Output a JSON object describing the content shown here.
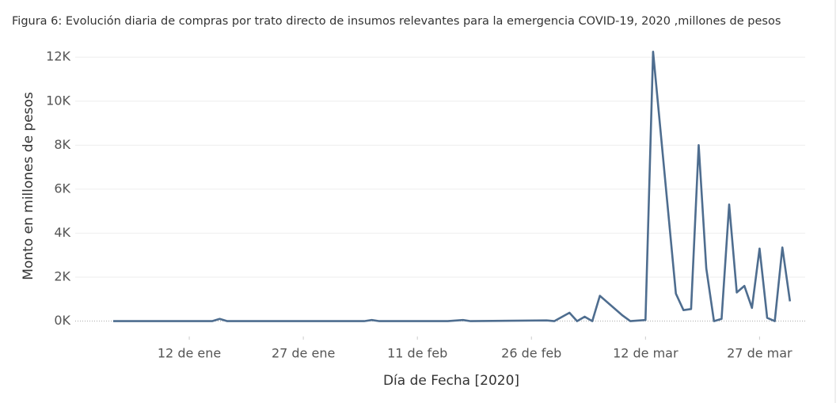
{
  "chart_data": {
    "type": "line",
    "title": "Figura 6: Evolución diaria de compras  por trato directo de insumos relevantes para la emergencia COVID-19, 2020 ,millones de pesos",
    "x_label": "Día de Fecha [2020]",
    "y_label": "Monto en millones de pesos",
    "x": [
      "2020-01-02",
      "2020-01-15",
      "2020-01-16",
      "2020-01-17",
      "2020-02-04",
      "2020-02-05",
      "2020-02-06",
      "2020-02-15",
      "2020-02-17",
      "2020-02-18",
      "2020-02-28",
      "2020-02-29",
      "2020-03-02",
      "2020-03-03",
      "2020-03-04",
      "2020-03-05",
      "2020-03-06",
      "2020-03-09",
      "2020-03-10",
      "2020-03-12",
      "2020-03-13",
      "2020-03-16",
      "2020-03-17",
      "2020-03-18",
      "2020-03-19",
      "2020-03-20",
      "2020-03-21",
      "2020-03-22",
      "2020-03-23",
      "2020-03-24",
      "2020-03-25",
      "2020-03-26",
      "2020-03-27",
      "2020-03-28",
      "2020-03-29",
      "2020-03-30",
      "2020-03-31"
    ],
    "series": [
      {
        "name": "Monto",
        "color": "#4e6d8f",
        "values": [
          0,
          0,
          100,
          0,
          0,
          50,
          0,
          0,
          50,
          0,
          30,
          0,
          380,
          0,
          200,
          0,
          1150,
          250,
          0,
          50,
          12250,
          1250,
          500,
          550,
          8000,
          2400,
          0,
          100,
          5300,
          1300,
          1600,
          600,
          3300,
          150,
          0,
          3350,
          900
        ]
      }
    ],
    "xlim": [
      "2019-12-28",
      "2020-04-02"
    ],
    "xticks": [
      {
        "value": "2020-01-12",
        "label": "12 de ene"
      },
      {
        "value": "2020-01-27",
        "label": "27 de ene"
      },
      {
        "value": "2020-02-11",
        "label": "11 de feb"
      },
      {
        "value": "2020-02-26",
        "label": "26 de feb"
      },
      {
        "value": "2020-03-12",
        "label": "12 de mar"
      },
      {
        "value": "2020-03-27",
        "label": "27 de mar"
      }
    ],
    "ylim": [
      -700,
      12800
    ],
    "yticks": [
      {
        "value": 0,
        "label": "0K"
      },
      {
        "value": 2000,
        "label": "2K"
      },
      {
        "value": 4000,
        "label": "4K"
      },
      {
        "value": 6000,
        "label": "6K"
      },
      {
        "value": 8000,
        "label": "8K"
      },
      {
        "value": 10000,
        "label": "10K"
      },
      {
        "value": 12000,
        "label": "12K"
      }
    ],
    "grid": true
  }
}
